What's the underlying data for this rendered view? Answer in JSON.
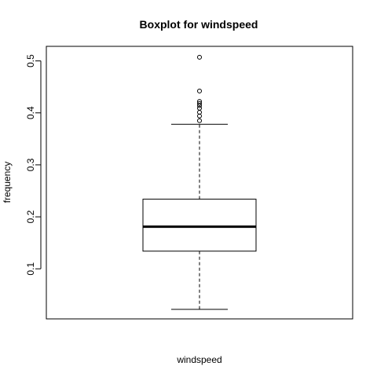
{
  "chart_data": {
    "type": "boxplot",
    "title": "Boxplot for windspeed",
    "xlabel": "windspeed",
    "ylabel": "frequency",
    "ylim": [
      0.0037,
      0.528
    ],
    "yticks": [
      0.1,
      0.2,
      0.3,
      0.4,
      0.5
    ],
    "ytick_labels": [
      "0.1",
      "0.2",
      "0.3",
      "0.4",
      "0.5"
    ],
    "grid": false,
    "legend": "none",
    "box": {
      "min": 0.022,
      "q1": 0.134,
      "median": 0.181,
      "q3": 0.234,
      "max": 0.378,
      "outliers": [
        0.385,
        0.394,
        0.401,
        0.409,
        0.414,
        0.418,
        0.422,
        0.442,
        0.507
      ]
    }
  }
}
